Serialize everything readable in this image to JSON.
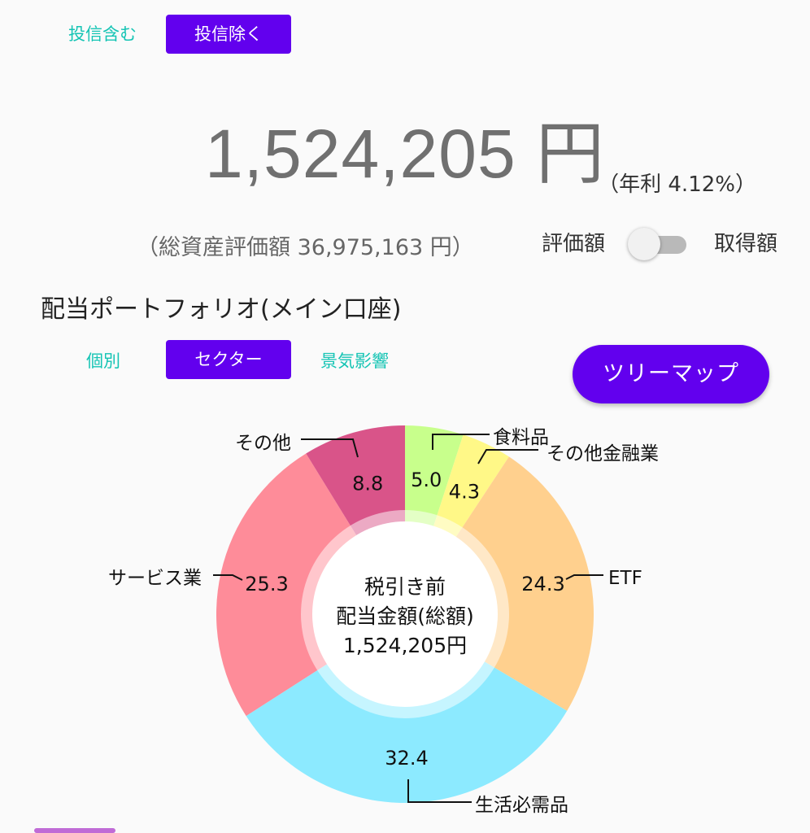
{
  "filter_tabs": {
    "include": "投信含む",
    "exclude": "投信除く"
  },
  "dividend": {
    "amount": "1,524,205 円",
    "annual_rate": "（年利 4.12%）"
  },
  "total_assets": "（総資産評価額 36,975,163 円）",
  "toggle": {
    "left_label": "評価額",
    "right_label": "取得額"
  },
  "section_title": "配当ポートフォリオ(メイン口座)",
  "view_tabs": {
    "individual": "個別",
    "sector": "セクター",
    "economy": "景気影響"
  },
  "treemap_button": "ツリーマップ",
  "chart_data": {
    "type": "pie",
    "center_text": [
      "税引き前",
      "配当金額(総額)",
      "1,524,205円"
    ],
    "slices": [
      {
        "name": "食料品",
        "value": 5.0,
        "label": "5.0",
        "color": "#c8ff8c"
      },
      {
        "name": "その他金融業",
        "value": 4.3,
        "label": "4.3",
        "color": "#fff887"
      },
      {
        "name": "ETF",
        "value": 24.3,
        "label": "24.3",
        "color": "#ffd08e"
      },
      {
        "name": "生活必需品",
        "value": 32.4,
        "label": "32.4",
        "color": "#8ceaff"
      },
      {
        "name": "サービス業",
        "value": 25.3,
        "label": "25.3",
        "color": "#fe8c99"
      },
      {
        "name": "その他",
        "value": 8.8,
        "label": "8.8",
        "color": "#d95489"
      }
    ]
  }
}
